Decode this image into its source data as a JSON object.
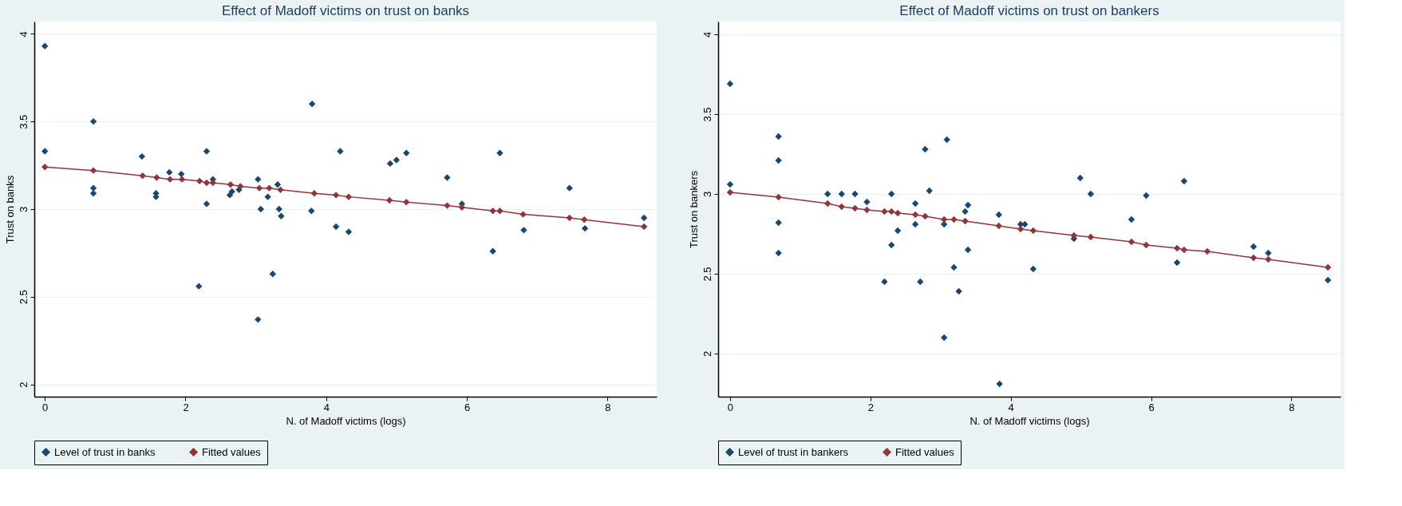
{
  "chart_data": [
    {
      "type": "scatter",
      "title": "Effect of Madoff victims on trust on banks",
      "xlabel": "N. of Madoff victims (logs)",
      "ylabel": "Trust on banks",
      "xlim": [
        -0.15,
        8.7
      ],
      "ylim": [
        1.93,
        4.07
      ],
      "xticks": [
        0,
        2,
        4,
        6,
        8
      ],
      "yticks": [
        2,
        2.5,
        3,
        3.5,
        4
      ],
      "grid": "y",
      "legend": "bottom",
      "marker": "diamond",
      "series": [
        {
          "name": "Level of trust in banks",
          "color": "#1a476f",
          "x": [
            0,
            0,
            0.69,
            0.69,
            0.69,
            1.38,
            1.58,
            1.58,
            1.77,
            1.94,
            2.19,
            2.3,
            2.3,
            2.39,
            2.63,
            2.66,
            2.76,
            3.03,
            3.03,
            3.07,
            3.17,
            3.24,
            3.31,
            3.33,
            3.36,
            3.79,
            3.8,
            4.14,
            4.2,
            4.32,
            4.91,
            5.0,
            5.14,
            5.72,
            5.93,
            6.37,
            6.47,
            6.81,
            7.46,
            7.68,
            8.52
          ],
          "values": [
            3.93,
            3.33,
            3.5,
            3.12,
            3.09,
            3.3,
            3.09,
            3.07,
            3.21,
            3.2,
            2.56,
            3.33,
            3.03,
            3.17,
            3.08,
            3.1,
            3.11,
            3.17,
            2.37,
            3.0,
            3.07,
            2.63,
            3.14,
            3.0,
            2.96,
            2.99,
            3.6,
            2.9,
            3.33,
            2.87,
            3.26,
            3.28,
            3.32,
            3.18,
            3.03,
            2.76,
            3.32,
            2.88,
            3.12,
            2.89,
            2.95
          ]
        },
        {
          "name": "Fitted values",
          "type": "line",
          "color": "#90353b",
          "x": [
            0,
            0.69,
            1.39,
            1.59,
            1.78,
            1.95,
            2.2,
            2.3,
            2.39,
            2.64,
            2.78,
            3.05,
            3.19,
            3.35,
            3.83,
            4.14,
            4.32,
            4.9,
            5.14,
            5.72,
            5.93,
            6.37,
            6.47,
            6.8,
            7.46,
            7.67,
            8.52
          ],
          "values": [
            3.24,
            3.22,
            3.19,
            3.18,
            3.17,
            3.17,
            3.16,
            3.15,
            3.15,
            3.14,
            3.13,
            3.12,
            3.12,
            3.11,
            3.09,
            3.08,
            3.07,
            3.05,
            3.04,
            3.02,
            3.01,
            2.99,
            2.99,
            2.97,
            2.95,
            2.94,
            2.9
          ]
        }
      ]
    },
    {
      "type": "scatter",
      "title": "Effect of Madoff victims on trust on bankers",
      "xlabel": "N. of Madoff victims (logs)",
      "ylabel": "Trust on bankers",
      "xlim": [
        -0.17,
        8.7
      ],
      "ylim": [
        1.73,
        4.08
      ],
      "xticks": [
        0,
        2,
        4,
        6,
        8
      ],
      "yticks": [
        2,
        2.5,
        3,
        3.5,
        4
      ],
      "grid": "y",
      "legend": "bottom",
      "marker": "diamond",
      "series": [
        {
          "name": "Level of trust in bankers",
          "color": "#1a476f",
          "x": [
            0,
            0,
            0.69,
            0.69,
            0.69,
            0.69,
            1.39,
            1.59,
            1.78,
            1.95,
            2.2,
            2.3,
            2.3,
            2.39,
            2.64,
            2.64,
            2.71,
            2.78,
            2.84,
            3.05,
            3.05,
            3.09,
            3.19,
            3.26,
            3.35,
            3.39,
            3.39,
            3.83,
            3.84,
            4.14,
            4.2,
            4.32,
            4.9,
            4.99,
            5.14,
            5.72,
            5.93,
            6.37,
            6.47,
            6.8,
            7.46,
            7.67,
            8.52
          ],
          "values": [
            3.69,
            3.06,
            3.36,
            3.21,
            2.82,
            2.63,
            3.0,
            3.0,
            3.0,
            2.95,
            2.45,
            3.0,
            2.68,
            2.77,
            2.94,
            2.81,
            2.45,
            3.28,
            3.02,
            2.81,
            2.1,
            3.34,
            2.54,
            2.39,
            2.89,
            2.93,
            2.65,
            2.87,
            1.81,
            2.81,
            2.81,
            2.53,
            2.72,
            3.1,
            3.0,
            2.84,
            2.99,
            2.57,
            3.08,
            null,
            2.67,
            2.63,
            2.46
          ]
        },
        {
          "name": "Fitted values",
          "type": "line",
          "color": "#90353b",
          "x": [
            0,
            0.69,
            1.39,
            1.59,
            1.78,
            1.95,
            2.2,
            2.3,
            2.39,
            2.64,
            2.78,
            3.05,
            3.19,
            3.35,
            3.83,
            4.14,
            4.32,
            4.9,
            5.14,
            5.72,
            5.93,
            6.37,
            6.47,
            6.8,
            7.46,
            7.67,
            8.52
          ],
          "values": [
            3.01,
            2.98,
            2.94,
            2.92,
            2.91,
            2.9,
            2.89,
            2.89,
            2.88,
            2.87,
            2.86,
            2.84,
            2.84,
            2.83,
            2.8,
            2.78,
            2.77,
            2.74,
            2.73,
            2.7,
            2.68,
            2.66,
            2.65,
            2.64,
            2.6,
            2.59,
            2.54
          ]
        }
      ]
    }
  ]
}
